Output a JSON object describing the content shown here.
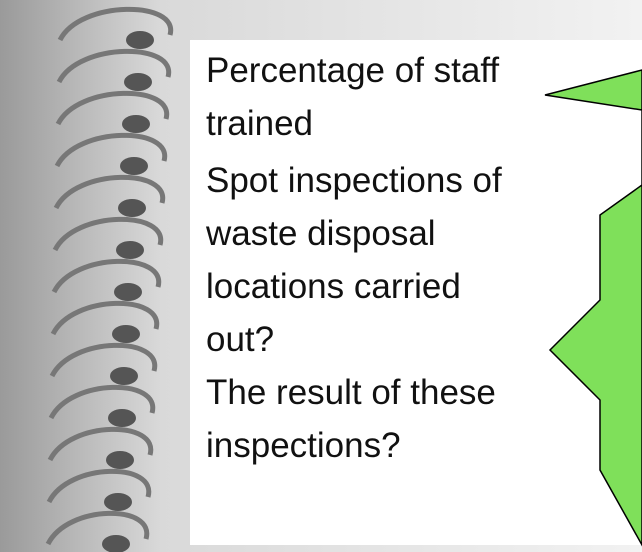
{
  "items": [
    {
      "lines": [
        "Percentage of staff",
        "trained"
      ]
    },
    {
      "lines": [
        "Spot inspections of",
        "waste disposal",
        "locations carried",
        "out?"
      ]
    },
    {
      "lines": [
        "The result of these",
        "inspections?"
      ]
    }
  ]
}
